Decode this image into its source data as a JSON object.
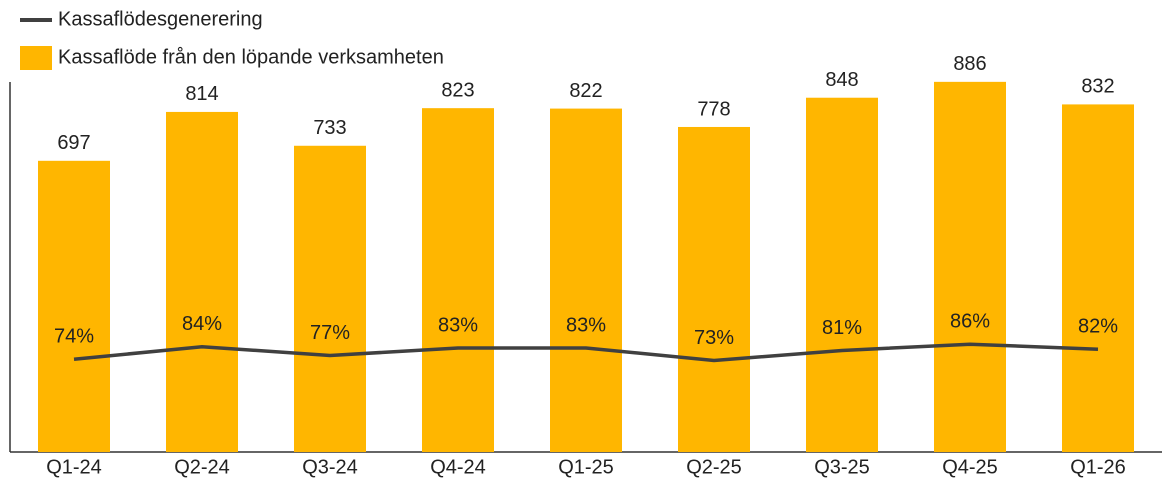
{
  "chart_data": {
    "type": "bar",
    "categories": [
      "Q1-24",
      "Q2-24",
      "Q3-24",
      "Q4-24",
      "Q1-25",
      "Q2-25",
      "Q3-25",
      "Q4-25",
      "Q1-26"
    ],
    "series": [
      {
        "name": "Kassaflödesgenerering",
        "type": "line",
        "axis": "y2",
        "color": "#404040",
        "values": [
          74,
          84,
          77,
          83,
          83,
          73,
          81,
          86,
          82
        ],
        "value_labels": [
          "74%",
          "84%",
          "77%",
          "83%",
          "83%",
          "73%",
          "81%",
          "86%",
          "82%"
        ]
      },
      {
        "name": "Kassaflöde från den löpande verksamheten",
        "type": "bar",
        "color": "#FFB600",
        "values": [
          697,
          814,
          733,
          823,
          822,
          778,
          848,
          886,
          832
        ]
      }
    ],
    "ylim": [
      0,
      900
    ],
    "y2lim": [
      0,
      300
    ]
  }
}
